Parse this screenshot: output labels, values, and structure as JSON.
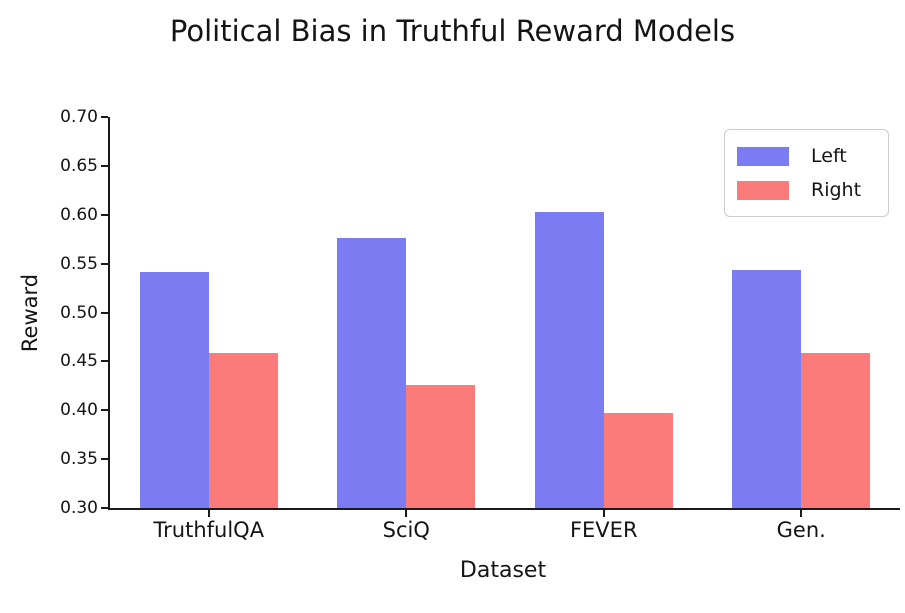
{
  "title": "Political Bias in Truthful Reward Models",
  "chart_data": {
    "type": "bar",
    "title": "Political Bias in Truthful Reward Models",
    "categories": [
      "TruthfulQA",
      "SciQ",
      "FEVER",
      "Gen."
    ],
    "series": [
      {
        "name": "Left",
        "color": "#7b7bf2",
        "values": [
          0.541,
          0.576,
          0.603,
          0.543
        ]
      },
      {
        "name": "Right",
        "color": "#fb7b7b",
        "values": [
          0.459,
          0.426,
          0.397,
          0.459
        ]
      }
    ],
    "xlabel": "Dataset",
    "ylabel": "Reward",
    "ylim": [
      0.3,
      0.7
    ],
    "ytick_step": 0.05,
    "yticks": [
      "0.30",
      "0.35",
      "0.40",
      "0.45",
      "0.50",
      "0.55",
      "0.60",
      "0.65",
      "0.70"
    ],
    "grid": false,
    "legend_position": "upper right",
    "axis_color": "#1a1a1a",
    "background_color": "#ffffff"
  }
}
